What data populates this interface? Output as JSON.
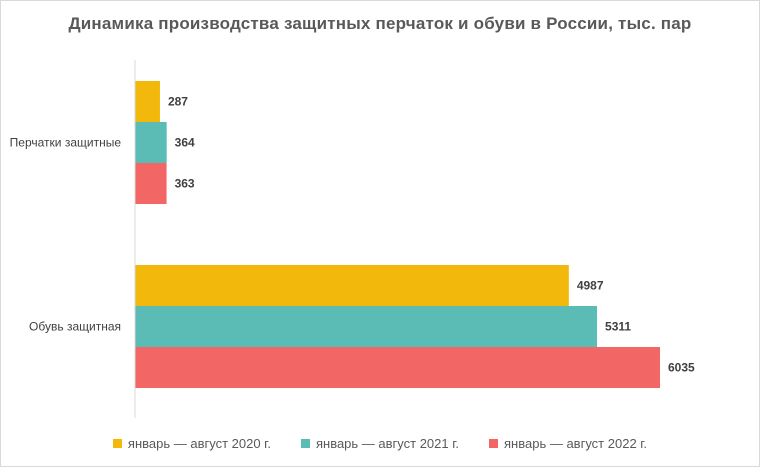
{
  "chart_data": {
    "type": "bar",
    "orientation": "horizontal",
    "title": "Динамика производства защитных перчаток и обуви в России, тыс. пар",
    "categories": [
      "Перчатки защитные",
      "Обувь защитная"
    ],
    "series": [
      {
        "name": "январь — август 2020 г.",
        "color": "#f2b90c",
        "values": [
          287,
          4987
        ]
      },
      {
        "name": "январь — август 2021 г.",
        "color": "#5bbcb5",
        "values": [
          364,
          5311
        ]
      },
      {
        "name": "январь — август 2022 г.",
        "color": "#f26666",
        "values": [
          363,
          6035
        ]
      }
    ],
    "xlim": [
      0,
      6500
    ],
    "grid": false,
    "legend": "bottom",
    "data_labels": true
  }
}
